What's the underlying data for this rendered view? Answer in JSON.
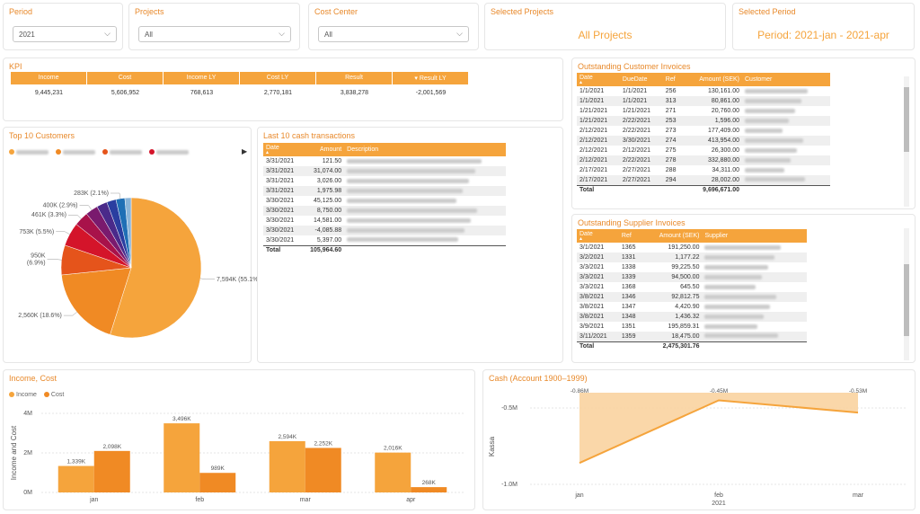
{
  "slicers": {
    "period": {
      "title": "Period",
      "value": "2021"
    },
    "projects": {
      "title": "Projects",
      "value": "All"
    },
    "cost_center": {
      "title": "Cost Center",
      "value": "All"
    },
    "selected_projects": {
      "title": "Selected Projects",
      "value": "All Projects"
    },
    "selected_period": {
      "title": "Selected Period",
      "value": "Period: 2021-jan - 2021-apr"
    }
  },
  "kpi": {
    "title": "KPI",
    "headers": [
      "Income",
      "Cost",
      "Income LY",
      "Cost LY",
      "Result",
      "Result LY"
    ],
    "values": [
      "9,445,231",
      "5,606,952",
      "768,613",
      "2,770,181",
      "3,838,278",
      "-2,001,569"
    ]
  },
  "top10": {
    "title": "Top 10 Customers",
    "legend_colors": [
      "#f5a43c",
      "#f08a24",
      "#e5541b",
      "#d4142a"
    ],
    "slices": [
      {
        "label": "7,594K (55.1%)",
        "value": 7594,
        "color": "#f5a43c"
      },
      {
        "label": "2,560K (18.6%)",
        "value": 2560,
        "color": "#f08a24"
      },
      {
        "label": "950K (6.9%)",
        "value": 950,
        "color": "#e5541b"
      },
      {
        "label": "753K (5.5%)",
        "value": 753,
        "color": "#d4142a"
      },
      {
        "label": "461K (3.3%)",
        "value": 461,
        "color": "#a8124a"
      },
      {
        "label": "400K (2.9%)",
        "value": 400,
        "color": "#7a1a6e"
      },
      {
        "label": "",
        "value": 340,
        "color": "#4a2a8a"
      },
      {
        "label": "",
        "value": 300,
        "color": "#2a3ea0"
      },
      {
        "label": "283K (2.1%)",
        "value": 283,
        "color": "#1f6fb5"
      },
      {
        "label": "",
        "value": 200,
        "color": "#8ab4d8"
      }
    ]
  },
  "cash_tx": {
    "title": "Last 10 cash transactions",
    "headers": [
      "Date",
      "Amount",
      "Description"
    ],
    "rows": [
      [
        "3/31/2021",
        "121.50"
      ],
      [
        "3/31/2021",
        "31,074.00"
      ],
      [
        "3/31/2021",
        "3,026.00"
      ],
      [
        "3/31/2021",
        "1,975.98"
      ],
      [
        "3/30/2021",
        "45,125.00"
      ],
      [
        "3/30/2021",
        "8,750.00"
      ],
      [
        "3/30/2021",
        "14,581.00"
      ],
      [
        "3/30/2021",
        "-4,085.88"
      ],
      [
        "3/30/2021",
        "5,397.00"
      ]
    ],
    "total_label": "Total",
    "total": "105,964.60"
  },
  "cust_inv": {
    "title": "Outstanding Customer Invoices",
    "headers": [
      "Date",
      "DueDate",
      "Ref",
      "Amount (SEK)",
      "Customer"
    ],
    "rows": [
      [
        "1/1/2021",
        "1/1/2021",
        "256",
        "130,161.00"
      ],
      [
        "1/1/2021",
        "1/1/2021",
        "313",
        "80,861.00"
      ],
      [
        "1/21/2021",
        "1/21/2021",
        "271",
        "20,760.00"
      ],
      [
        "1/21/2021",
        "2/22/2021",
        "253",
        "1,596.00"
      ],
      [
        "2/12/2021",
        "2/22/2021",
        "273",
        "177,409.00"
      ],
      [
        "2/12/2021",
        "3/30/2021",
        "274",
        "413,954.00"
      ],
      [
        "2/12/2021",
        "2/12/2021",
        "275",
        "26,300.00"
      ],
      [
        "2/12/2021",
        "2/22/2021",
        "278",
        "332,880.00"
      ],
      [
        "2/17/2021",
        "2/27/2021",
        "288",
        "34,311.00"
      ],
      [
        "2/17/2021",
        "2/27/2021",
        "294",
        "28,002.00"
      ]
    ],
    "total_label": "Total",
    "total": "9,696,671.00"
  },
  "supp_inv": {
    "title": "Outstanding Supplier Invoices",
    "headers": [
      "Date",
      "Ref",
      "Amount (SEK)",
      "Supplier"
    ],
    "rows": [
      [
        "3/1/2021",
        "1365",
        "191,250.00"
      ],
      [
        "3/2/2021",
        "1331",
        "1,177.22"
      ],
      [
        "3/3/2021",
        "1338",
        "99,225.50"
      ],
      [
        "3/3/2021",
        "1339",
        "94,500.00"
      ],
      [
        "3/3/2021",
        "1368",
        "645.50"
      ],
      [
        "3/8/2021",
        "1346",
        "92,812.75"
      ],
      [
        "3/8/2021",
        "1347",
        "4,420.90"
      ],
      [
        "3/8/2021",
        "1348",
        "1,436.32"
      ],
      [
        "3/9/2021",
        "1351",
        "195,859.31"
      ],
      [
        "3/11/2021",
        "1359",
        "18,475.00"
      ]
    ],
    "total_label": "Total",
    "total": "2,475,301.76"
  },
  "income_cost": {
    "title": "Income, Cost",
    "legend": [
      "Income",
      "Cost"
    ],
    "ylabel": "Income and Cost",
    "yticks": [
      "4M",
      "2M",
      "0M"
    ],
    "chart_data": {
      "type": "bar",
      "categories": [
        "jan",
        "feb",
        "mar",
        "apr"
      ],
      "series": [
        {
          "name": "Income",
          "values": [
            1339,
            3496,
            2594,
            2016
          ],
          "labels": [
            "1,339K",
            "3,496K",
            "2,594K",
            "2,016K"
          ],
          "color": "#f5a43c"
        },
        {
          "name": "Cost",
          "values": [
            2098,
            989,
            2252,
            268
          ],
          "labels": [
            "2,098K",
            "989K",
            "2,252K",
            "268K"
          ],
          "color": "#f08a24"
        }
      ],
      "ylim": [
        0,
        4000
      ]
    }
  },
  "cash": {
    "title": "Cash (Account 1900–1999)",
    "ylabel": "Kassa",
    "yticks": [
      "-0.5M",
      "-1.0M"
    ],
    "year": "2021",
    "chart_data": {
      "type": "area",
      "categories": [
        "jan",
        "feb",
        "mar"
      ],
      "values": [
        -0.86,
        -0.45,
        -0.53
      ],
      "labels": [
        "-0.86M",
        "-0.45M",
        "-0.53M"
      ],
      "ylim": [
        -1.0,
        -0.4
      ]
    }
  }
}
